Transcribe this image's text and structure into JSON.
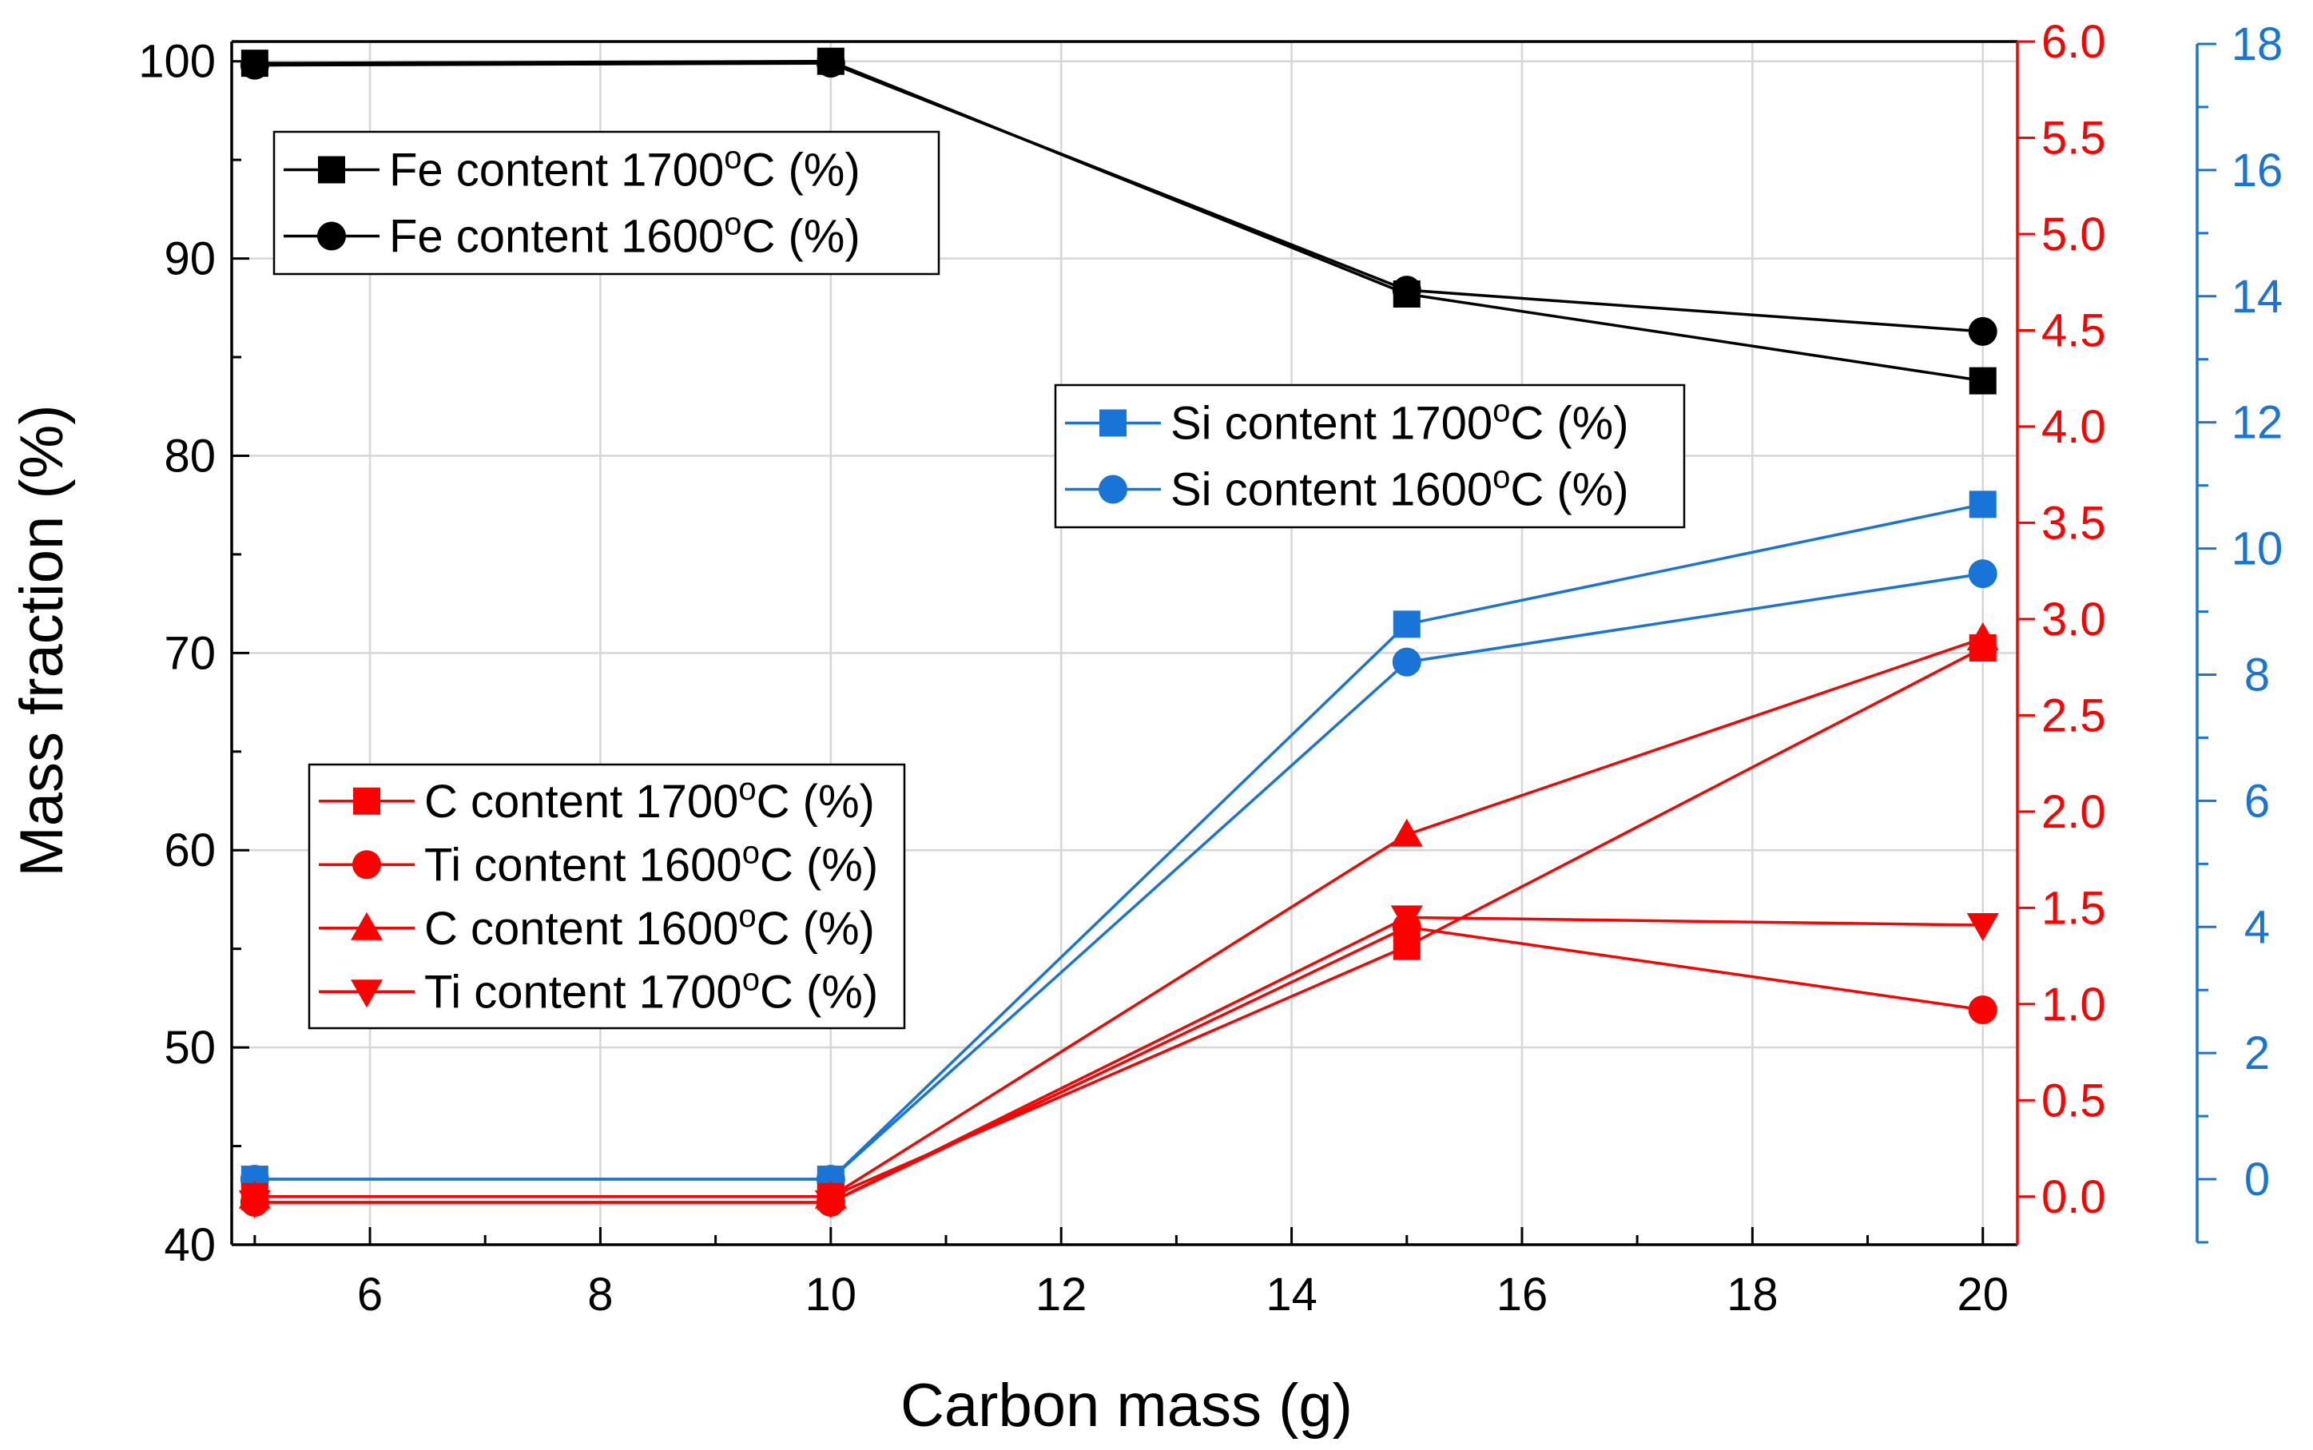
{
  "chart_data": {
    "type": "line",
    "xlabel": "Carbon mass (g)",
    "ylabel": "Mass fraction (%)",
    "xlim": [
      4.8,
      20.3
    ],
    "x_ticks": [
      "6",
      "8",
      "10",
      "12",
      "14",
      "16",
      "18",
      "20"
    ],
    "y_left": {
      "range": [
        40,
        101
      ],
      "ticks": [
        "40",
        "50",
        "60",
        "70",
        "80",
        "90",
        "100"
      ],
      "color": "#000000"
    },
    "y_right_red": {
      "range": [
        -0.25,
        6.0
      ],
      "ticks": [
        "0.0",
        "0.5",
        "1.0",
        "1.5",
        "2.0",
        "2.5",
        "3.0",
        "3.5",
        "4.0",
        "4.5",
        "5.0",
        "5.5",
        "6.0"
      ],
      "color": "#ff0000"
    },
    "y_right_blue": {
      "range": [
        -1,
        18
      ],
      "ticks": [
        "0",
        "2",
        "4",
        "6",
        "8",
        "10",
        "12",
        "14",
        "16",
        "18"
      ],
      "color": "#1874d6"
    },
    "x": [
      5,
      10,
      15,
      20
    ],
    "series": [
      {
        "name": "Fe content 1700°C (%)",
        "axis": "left",
        "marker": "square",
        "color": "#000000",
        "values": [
          99.9,
          100.0,
          88.2,
          83.8
        ]
      },
      {
        "name": "Fe content 1600°C (%)",
        "axis": "left",
        "marker": "circle",
        "color": "#000000",
        "values": [
          99.8,
          99.9,
          88.4,
          86.3
        ]
      },
      {
        "name": "Si content 1700°C (%)",
        "axis": "blue",
        "marker": "square",
        "color": "#1874d6",
        "values": [
          0.0,
          0.0,
          8.8,
          10.7
        ]
      },
      {
        "name": "Si content 1600°C (%)",
        "axis": "blue",
        "marker": "circle",
        "color": "#1874d6",
        "values": [
          0.0,
          0.0,
          8.2,
          9.6
        ]
      },
      {
        "name": "C content 1700°C (%)",
        "axis": "red",
        "marker": "square",
        "color": "#ff0000",
        "values": [
          0.0,
          0.0,
          1.3,
          2.85
        ]
      },
      {
        "name": "Ti content 1600°C (%)",
        "axis": "red",
        "marker": "circle",
        "color": "#ff0000",
        "values": [
          -0.03,
          -0.03,
          1.4,
          0.97
        ]
      },
      {
        "name": "C content 1600°C (%)",
        "axis": "red",
        "marker": "triangle-up",
        "color": "#ff0000",
        "values": [
          0.0,
          0.0,
          1.88,
          2.9
        ]
      },
      {
        "name": "Ti content 1700°C (%)",
        "axis": "red",
        "marker": "triangle-down",
        "color": "#ff0000",
        "values": [
          -0.03,
          -0.03,
          1.45,
          1.41
        ]
      }
    ],
    "legends": [
      {
        "position": "top-left",
        "items": [
          "Fe content 1700°C (%)",
          "Fe content 1600°C (%)"
        ]
      },
      {
        "position": "center",
        "items": [
          "Si content 1700°C (%)",
          "Si content 1600°C (%)"
        ]
      },
      {
        "position": "bottom-left",
        "items": [
          "C content 1700°C (%)",
          "Ti content 1600°C (%)",
          "C content 1600°C (%)",
          "Ti content 1700°C (%)"
        ]
      }
    ],
    "grid": true
  }
}
